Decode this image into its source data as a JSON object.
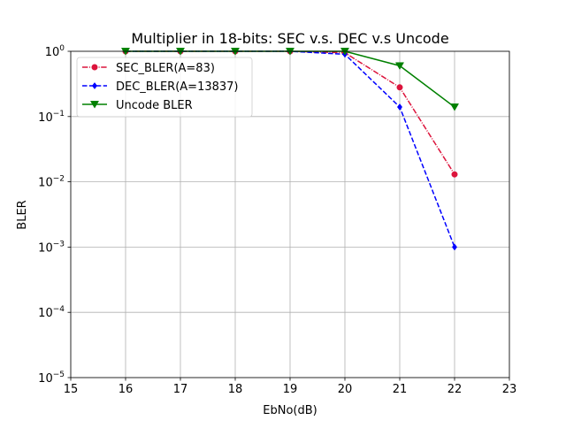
{
  "chart_data": {
    "type": "line",
    "title": "Multiplier in 18-bits: SEC v.s. DEC v.s Uncode",
    "xlabel": "EbNo(dB)",
    "ylabel": "BLER",
    "xlim": [
      15,
      23
    ],
    "ylim": [
      1e-05,
      1
    ],
    "yscale": "log",
    "grid": true,
    "legend_position": "top-left",
    "x_ticks": [
      "15",
      "16",
      "17",
      "18",
      "19",
      "20",
      "21",
      "22",
      "23"
    ],
    "y_ticks": [
      {
        "base": "10",
        "exp": "0",
        "value": 1
      },
      {
        "base": "10",
        "exp": "−1",
        "value": 0.1
      },
      {
        "base": "10",
        "exp": "−2",
        "value": 0.01
      },
      {
        "base": "10",
        "exp": "−3",
        "value": 0.001
      },
      {
        "base": "10",
        "exp": "−4",
        "value": 0.0001
      },
      {
        "base": "10",
        "exp": "−5",
        "value": 1e-05
      }
    ],
    "series": [
      {
        "name": "SEC_BLER(A=83)",
        "color": "#dc143c",
        "dash": "dashdot",
        "marker": "circle",
        "x": [
          16,
          17,
          18,
          19,
          20,
          21,
          22
        ],
        "y": [
          1,
          1,
          1,
          1,
          0.95,
          0.28,
          0.013
        ]
      },
      {
        "name": "DEC_BLER(A=13837)",
        "color": "#0000ff",
        "dash": "dashed",
        "marker": "diamond",
        "x": [
          16,
          17,
          18,
          19,
          20,
          21,
          22
        ],
        "y": [
          1,
          1,
          1,
          1,
          0.9,
          0.14,
          0.001
        ]
      },
      {
        "name": "Uncode BLER",
        "color": "#008000",
        "dash": "solid",
        "marker": "triangle-down",
        "x": [
          16,
          17,
          18,
          19,
          20,
          21,
          22
        ],
        "y": [
          1,
          1,
          1,
          1,
          1,
          0.6,
          0.14
        ]
      }
    ]
  }
}
